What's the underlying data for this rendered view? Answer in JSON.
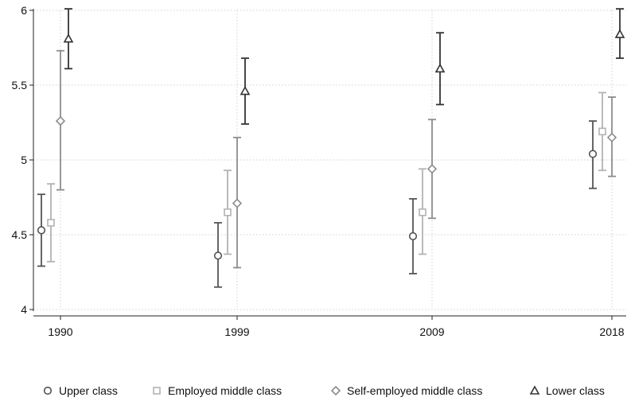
{
  "chart_data": {
    "type": "scatter",
    "x": [
      "1990",
      "1999",
      "2009",
      "2018"
    ],
    "ylim": [
      4,
      6
    ],
    "yticks": [
      "4",
      "4.5",
      "5",
      "5.5",
      "6"
    ],
    "grid": true,
    "legend_position": "bottom",
    "series": [
      {
        "name": "Upper class",
        "marker": "circle",
        "color": "#555555",
        "values": [
          4.53,
          4.36,
          4.49,
          5.04
        ],
        "ci_low": [
          4.29,
          4.15,
          4.24,
          4.81
        ],
        "ci_high": [
          4.77,
          4.58,
          4.74,
          5.26
        ]
      },
      {
        "name": "Employed middle class",
        "marker": "square",
        "color": "#b3b3b3",
        "values": [
          4.58,
          4.65,
          4.65,
          5.19
        ],
        "ci_low": [
          4.32,
          4.37,
          4.37,
          4.93
        ],
        "ci_high": [
          4.84,
          4.93,
          4.94,
          5.45
        ]
      },
      {
        "name": "Self-employed middle class",
        "marker": "diamond",
        "color": "#8c8c8c",
        "values": [
          5.26,
          4.71,
          4.94,
          5.15
        ],
        "ci_low": [
          4.8,
          4.28,
          4.61,
          4.89
        ],
        "ci_high": [
          5.73,
          5.15,
          5.27,
          5.42
        ]
      },
      {
        "name": "Lower class",
        "marker": "triangle",
        "color": "#333333",
        "values": [
          5.81,
          5.46,
          5.61,
          5.84
        ],
        "ci_low": [
          5.61,
          5.24,
          5.37,
          5.68
        ],
        "ci_high": [
          6.01,
          5.68,
          5.85,
          6.01
        ]
      }
    ]
  }
}
